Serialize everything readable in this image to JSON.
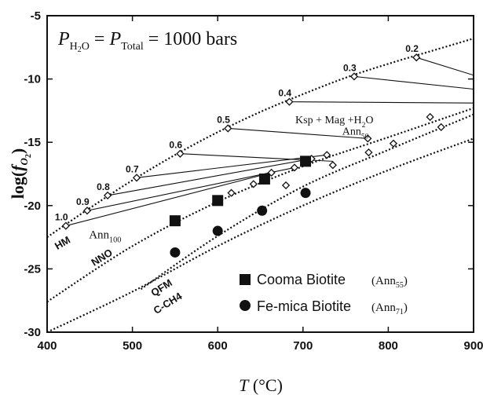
{
  "chart_data": {
    "type": "line",
    "xlabel": {
      "symbol": "T",
      "unit": "(°C)"
    },
    "ylabel": {
      "prefix": "log(",
      "symbol": "f",
      "sub": "O",
      "sub2": "2",
      "suffix": ")"
    },
    "xlim": [
      400,
      900
    ],
    "ylim": [
      -30,
      -5
    ],
    "xticks": [
      400,
      500,
      600,
      700,
      800,
      900
    ],
    "yticks": [
      -5,
      -10,
      -15,
      -20,
      -25,
      -30
    ],
    "pressure_label": {
      "p1": "P",
      "p1_sub": "H",
      "p1_sub2": "2",
      "p1_sub3": "O",
      "eq1": " = ",
      "p2": "P",
      "p2_sub": "Total",
      "eq2": " = 1000 bars"
    },
    "buffers": [
      {
        "name": "HM",
        "points": [
          [
            400,
            -22.5
          ],
          [
            450,
            -20.2
          ],
          [
            500,
            -18.0
          ],
          [
            550,
            -16.0
          ],
          [
            600,
            -14.2
          ],
          [
            650,
            -12.6
          ],
          [
            700,
            -11.2
          ],
          [
            750,
            -9.9
          ],
          [
            800,
            -8.8
          ],
          [
            850,
            -7.8
          ],
          [
            900,
            -6.8
          ]
        ]
      },
      {
        "name": "NNO",
        "points": [
          [
            400,
            -27.6
          ],
          [
            500,
            -23.2
          ],
          [
            600,
            -19.7
          ],
          [
            700,
            -16.9
          ],
          [
            800,
            -14.6
          ],
          [
            900,
            -12.3
          ]
        ]
      },
      {
        "name": "QFM",
        "points": [
          [
            510,
            -26.6
          ],
          [
            600,
            -22.4
          ],
          [
            700,
            -18.5
          ],
          [
            800,
            -15.6
          ],
          [
            900,
            -12.8
          ]
        ]
      },
      {
        "name": "C-CH4",
        "points": [
          [
            400,
            -30.0
          ],
          [
            500,
            -26.8
          ],
          [
            600,
            -23.2
          ],
          [
            700,
            -20.0
          ],
          [
            800,
            -17.2
          ],
          [
            900,
            -14.7
          ]
        ]
      }
    ],
    "annite_labels": {
      "ann100": "Ann",
      "ann100_sub": "100",
      "ann50": "Ann",
      "ann50_sub": "50",
      "assemblage": "Ksp + Mag +H",
      "assemblage_sub": "2",
      "assemblage_end": "O"
    },
    "hm_points": [
      {
        "label": "1.0",
        "T": 422,
        "log": -21.6
      },
      {
        "label": "0.9",
        "T": 447,
        "log": -20.4
      },
      {
        "label": "0.8",
        "T": 471,
        "log": -19.2
      },
      {
        "label": "0.7",
        "T": 505,
        "log": -17.8
      },
      {
        "label": "0.6",
        "T": 556,
        "log": -15.9
      },
      {
        "label": "0.5",
        "T": 612,
        "log": -13.9
      },
      {
        "label": "0.4",
        "T": 684,
        "log": -11.8
      },
      {
        "label": "0.3",
        "T": 760,
        "log": -9.8
      },
      {
        "label": "0.2",
        "T": 833,
        "log": -8.3
      }
    ],
    "tie_lines": [
      {
        "from": [
          422,
          -21.6
        ],
        "to": [
          663,
          -17.4
        ]
      },
      {
        "from": [
          447,
          -20.4
        ],
        "to": [
          690,
          -17.0
        ]
      },
      {
        "from": [
          471,
          -19.2
        ],
        "to": [
          710,
          -16.3
        ]
      },
      {
        "from": [
          505,
          -17.8
        ],
        "to": [
          728,
          -16.0
        ]
      },
      {
        "from": [
          556,
          -15.9
        ],
        "to": [
          735,
          -16.5
        ]
      },
      {
        "from": [
          612,
          -13.9
        ],
        "to": [
          776,
          -14.7
        ]
      },
      {
        "from": [
          684,
          -11.8
        ],
        "to": [
          900,
          -11.9
        ]
      },
      {
        "from": [
          760,
          -9.8
        ],
        "to": [
          900,
          -10.8
        ]
      },
      {
        "from": [
          833,
          -8.3
        ],
        "to": [
          900,
          -9.7
        ]
      }
    ],
    "qfm_points": [
      {
        "T": 616,
        "log": -19.0
      },
      {
        "T": 642,
        "log": -18.3
      },
      {
        "T": 680,
        "log": -18.4
      },
      {
        "T": 735,
        "log": -16.8
      },
      {
        "T": 777,
        "log": -15.8
      },
      {
        "T": 806,
        "log": -15.1
      }
    ],
    "nno_points": [
      {
        "T": 663,
        "log": -17.4
      },
      {
        "T": 690,
        "log": -17.0
      },
      {
        "T": 710,
        "log": -16.3
      },
      {
        "T": 728,
        "log": -16.0
      },
      {
        "T": 776,
        "log": -14.7
      },
      {
        "T": 849,
        "log": -13.0
      },
      {
        "T": 862,
        "log": -13.8
      }
    ],
    "series": [
      {
        "name": "Cooma Biotite",
        "tag": "Ann",
        "tag_sub": "55",
        "marker": "square",
        "x": [
          550,
          600,
          655,
          703
        ],
        "y": [
          -21.2,
          -19.6,
          -17.9,
          -16.5
        ]
      },
      {
        "name": "Fe-mica Biotite",
        "tag": "Ann",
        "tag_sub": "71",
        "marker": "circle",
        "x": [
          550,
          600,
          652,
          703
        ],
        "y": [
          -23.7,
          -22.0,
          -20.4,
          -19.0
        ]
      }
    ]
  }
}
